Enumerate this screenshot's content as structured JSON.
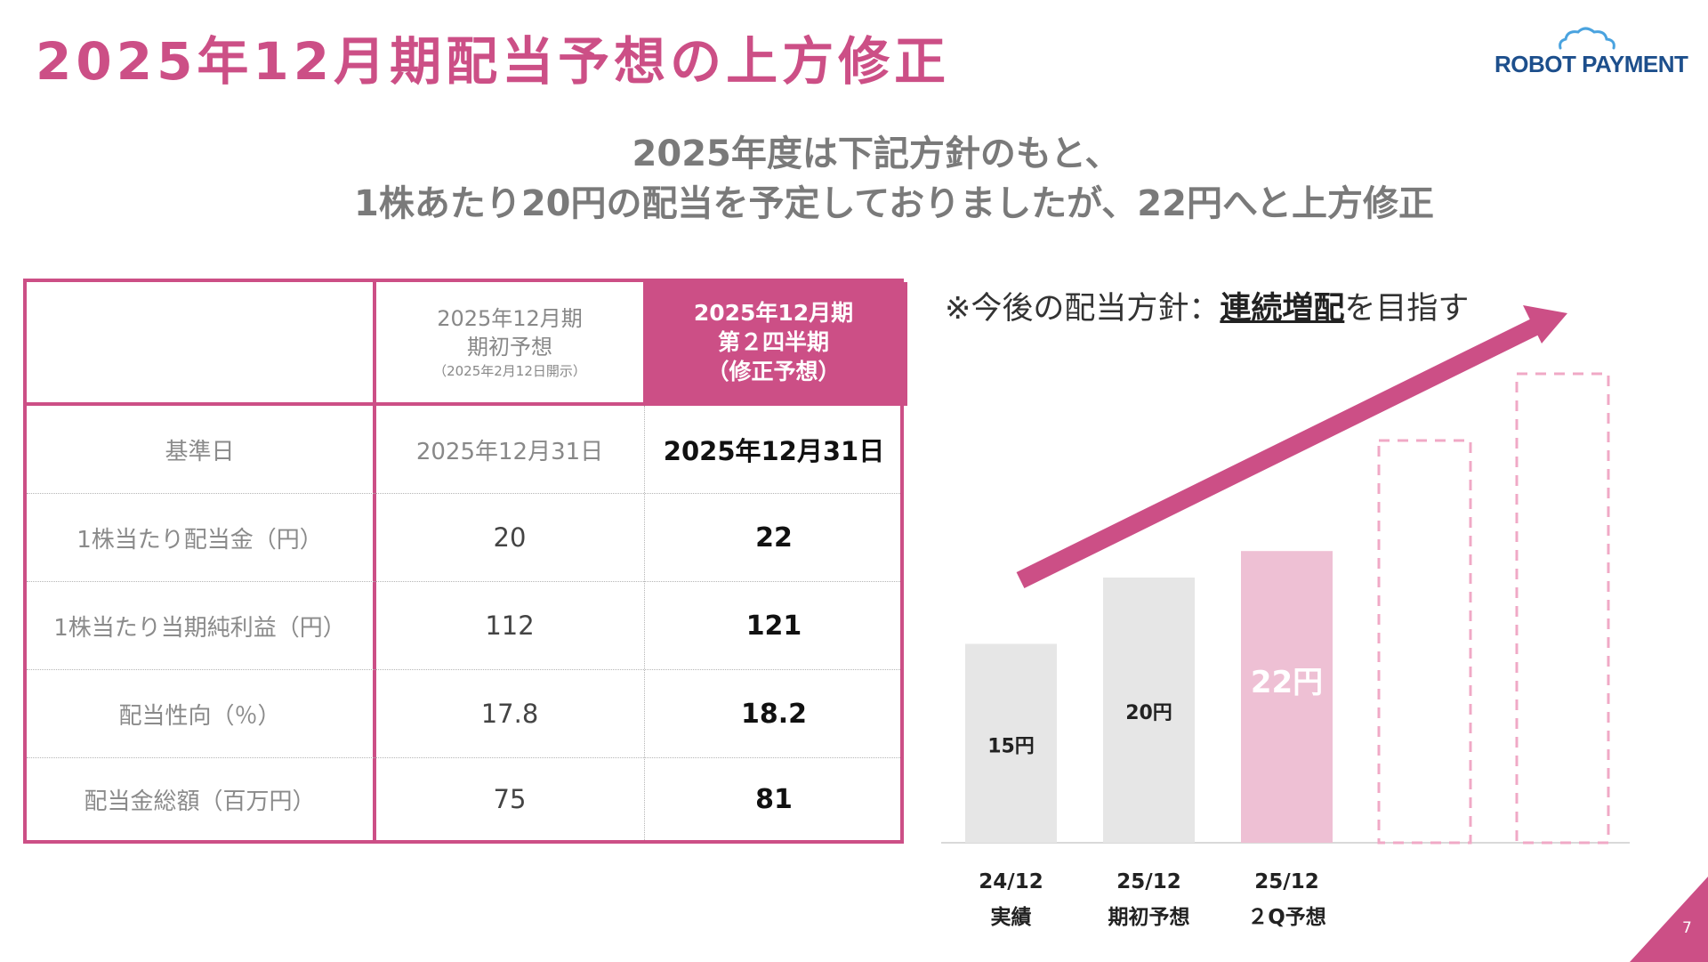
{
  "header": {
    "title": "2025年12月期配当予想の上方修正",
    "logo_text": "ROBOT PAYMENT",
    "subtitle_line1": "2025年度は下記方針のもと、",
    "subtitle_line2": "1株あたり20円の配当を予定しておりましたが、22円へと上方修正"
  },
  "table": {
    "col2_header": [
      "2025年12月期",
      "期初予想",
      "（2025年2月12日開示）"
    ],
    "col3_header": [
      "2025年12月期",
      "第２四半期",
      "（修正予想）"
    ],
    "rows": [
      {
        "label": "基準日",
        "initial": "2025年12月31日",
        "revised": "2025年12月31日"
      },
      {
        "label": "1株当たり配当金（円）",
        "initial": "20",
        "revised": "22"
      },
      {
        "label": "1株当たり当期純利益（円）",
        "initial": "112",
        "revised": "121"
      },
      {
        "label": "配当性向（％）",
        "initial": "17.8",
        "revised": "18.2"
      },
      {
        "label": "配当金総額（百万円）",
        "initial": "75",
        "revised": "81"
      }
    ]
  },
  "policy": {
    "prefix": "※今後の配当方針：",
    "emphasis": "連続増配",
    "suffix": "を目指す"
  },
  "colors": {
    "accent": "#cc4f86",
    "bar_gray": "#e6e6e6",
    "bar_pink": "#eec0d4",
    "dashed": "#f0a9c6"
  },
  "chart_data": {
    "type": "bar",
    "categories": [
      "24/12 実績",
      "25/12 期初予想",
      "25/12 ２Q予想"
    ],
    "category_lines": [
      [
        "24/12",
        "実績"
      ],
      [
        "25/12",
        "期初予想"
      ],
      [
        "25/12",
        "２Q予想"
      ]
    ],
    "values": [
      15,
      20,
      22
    ],
    "data_labels": [
      "15円",
      "20円",
      "22円"
    ],
    "future_placeholders": 2,
    "trend_arrow": "up"
  },
  "page_number": "7"
}
